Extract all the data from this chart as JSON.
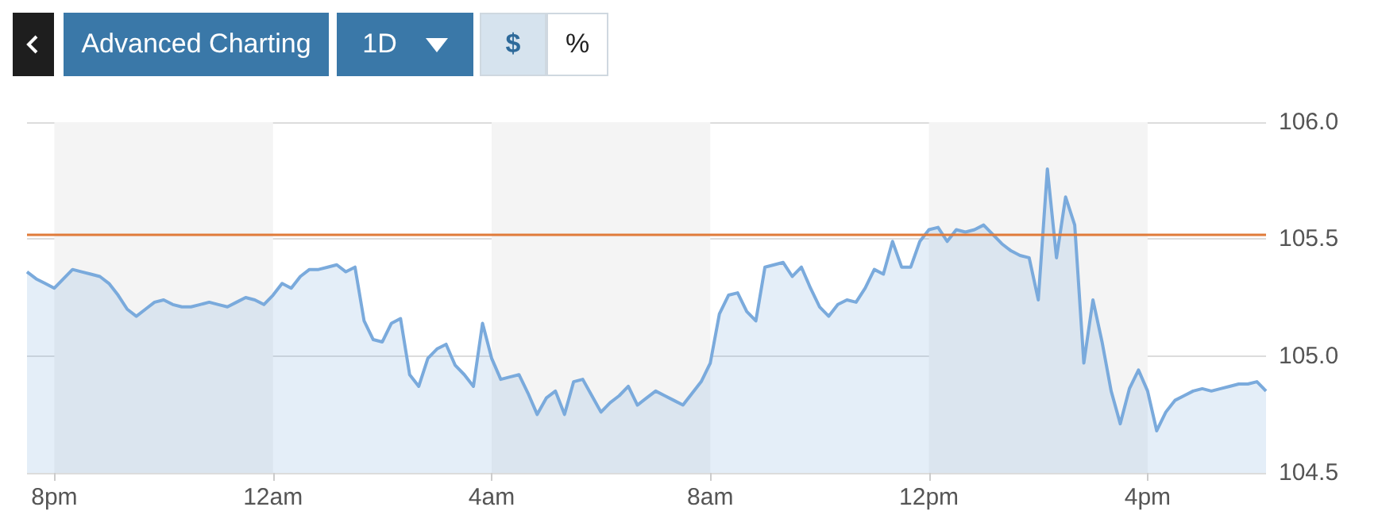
{
  "chart_data": {
    "type": "area",
    "annotations": [
      "Advanced Charting",
      "1D",
      "$",
      "%"
    ],
    "categories": [
      null,
      null,
      null,
      "8pm",
      null,
      null,
      null,
      null,
      null,
      null,
      null,
      null,
      null,
      null,
      null,
      null,
      null,
      null,
      null,
      null,
      null,
      null,
      null,
      null,
      null,
      null,
      null,
      "12am",
      null,
      null,
      null,
      null,
      null,
      null,
      null,
      null,
      null,
      null,
      null,
      null,
      null,
      null,
      null,
      null,
      null,
      null,
      null,
      null,
      null,
      null,
      null,
      "4am",
      null,
      null,
      null,
      null,
      null,
      null,
      null,
      null,
      null,
      null,
      null,
      null,
      null,
      null,
      null,
      null,
      null,
      null,
      null,
      null,
      null,
      null,
      null,
      "8am",
      null,
      null,
      null,
      null,
      null,
      null,
      null,
      null,
      null,
      null,
      null,
      null,
      null,
      null,
      null,
      null,
      null,
      null,
      null,
      null,
      null,
      null,
      null,
      "12pm",
      null,
      null,
      null,
      null,
      null,
      null,
      null,
      null,
      null,
      null,
      null,
      null,
      null,
      null,
      null,
      null,
      null,
      null,
      null,
      null,
      null,
      null,
      null,
      "4pm",
      null,
      null,
      null,
      null,
      null,
      null,
      null,
      null,
      null,
      null,
      null,
      null,
      null
    ],
    "series": [
      {
        "color": "#7aaadc",
        "values": [
          105.36,
          105.33,
          105.31,
          105.29,
          105.33,
          105.37,
          105.36,
          105.35,
          105.34,
          105.31,
          105.26,
          105.2,
          105.17,
          105.2,
          105.23,
          105.24,
          105.22,
          105.21,
          105.21,
          105.22,
          105.23,
          105.22,
          105.21,
          105.23,
          105.25,
          105.24,
          105.22,
          105.26,
          105.31,
          105.29,
          105.34,
          105.37,
          105.37,
          105.38,
          105.39,
          105.36,
          105.38,
          105.15,
          105.07,
          105.06,
          105.14,
          105.16,
          104.92,
          104.87,
          104.99,
          105.03,
          105.05,
          104.96,
          104.92,
          104.87,
          105.14,
          104.99,
          104.9,
          104.91,
          104.92,
          104.84,
          104.75,
          104.82,
          104.85,
          104.75,
          104.89,
          104.9,
          104.83,
          104.76,
          104.8,
          104.83,
          104.87,
          104.79,
          104.82,
          104.85,
          104.83,
          104.81,
          104.79,
          104.84,
          104.89,
          104.97,
          105.18,
          105.26,
          105.27,
          105.19,
          105.15,
          105.38,
          105.39,
          105.4,
          105.34,
          105.38,
          105.29,
          105.21,
          105.17,
          105.22,
          105.24,
          105.23,
          105.29,
          105.37,
          105.35,
          105.49,
          105.38,
          105.38,
          105.49,
          105.54,
          105.55,
          105.49,
          105.54,
          105.53,
          105.54,
          105.56,
          105.52,
          105.48,
          105.45,
          105.43,
          105.42,
          105.24,
          105.8,
          105.42,
          105.68,
          105.56,
          104.97,
          105.24,
          105.06,
          104.85,
          104.71,
          104.86,
          104.94,
          104.85,
          104.68,
          104.76,
          104.81,
          104.83,
          104.85,
          104.86,
          104.85,
          104.86,
          104.87,
          104.88,
          104.88,
          104.89,
          104.85
        ]
      }
    ],
    "ylim": [
      104.5,
      106.0
    ],
    "yticks": [
      104.5,
      {
        "value": 105,
        "label": "105.0"
      },
      105.5,
      {
        "value": 106,
        "label": "106.0"
      }
    ],
    "grid": "y",
    "ref_lines": [
      {
        "axis": "y",
        "value": 105.52,
        "color": "#e07b39"
      }
    ],
    "bands": [
      {
        "axis": "x",
        "from": "8pm",
        "to": "12am",
        "color": "#f4f4f4"
      },
      {
        "axis": "x",
        "from": "4am",
        "to": "8am",
        "color": "#f4f4f4"
      },
      {
        "axis": "x",
        "from": "12pm",
        "to": "4pm",
        "color": "#f4f4f4"
      }
    ]
  }
}
